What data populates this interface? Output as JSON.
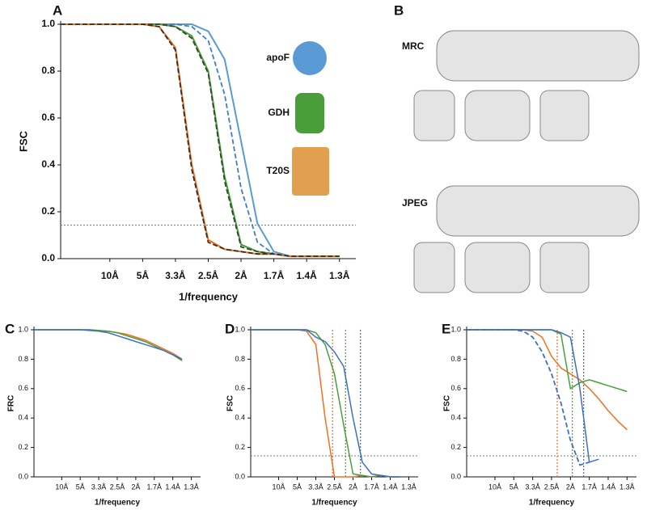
{
  "chart_data": [
    {
      "type": "line",
      "label": "A",
      "x_label": "1/frequency",
      "y_label": "FSC",
      "x": [
        -0.05,
        0,
        0.05,
        0.1,
        0.15,
        0.2,
        0.25,
        0.3,
        0.35,
        0.4,
        0.45,
        0.5,
        0.55,
        0.6,
        0.65,
        0.7,
        0.75,
        0.8
      ],
      "xlim": [
        -0.05,
        0.85
      ],
      "ylim": [
        0,
        1
      ],
      "xticks": [
        {
          "value": 0.1,
          "label": "10Å"
        },
        {
          "value": 0.2,
          "label": "5Å"
        },
        {
          "value": 0.3,
          "label": "3.3Å"
        },
        {
          "value": 0.4,
          "label": "2.5Å"
        },
        {
          "value": 0.5,
          "label": "2Å"
        },
        {
          "value": 0.6,
          "label": "1.7Å"
        },
        {
          "value": 0.7,
          "label": "1.4Å"
        },
        {
          "value": 0.8,
          "label": "1.3Å"
        }
      ],
      "yticks": [
        {
          "value": 0,
          "label": "0.0"
        },
        0.2,
        0.4,
        0.6,
        0.8,
        {
          "value": 1,
          "label": "1.0"
        }
      ],
      "threshold": 0.143,
      "series": [
        {
          "name": "apoF",
          "color": "#5b9bd5",
          "dash_color": "#3f7fc4",
          "values": [
            1,
            1,
            1,
            1,
            1,
            1,
            1,
            1,
            1,
            0.97,
            0.85,
            0.5,
            0.15,
            0.03,
            0.01,
            0.01,
            0.01,
            0.01
          ],
          "dash_values": [
            1,
            1,
            1,
            1,
            1,
            1,
            1,
            1,
            0.99,
            0.93,
            0.7,
            0.3,
            0.07,
            0.02,
            0.01,
            0.01,
            0.01,
            0.01
          ]
        },
        {
          "name": "GDH",
          "color": "#4a9e3a",
          "dash_color": "#2f4a2a",
          "values": [
            1,
            1,
            1,
            1,
            1,
            1,
            1,
            0.99,
            0.95,
            0.8,
            0.35,
            0.06,
            0.03,
            0.02,
            0.01,
            0.01,
            0.01,
            0.01
          ],
          "dash_values": [
            1,
            1,
            1,
            1,
            1,
            1,
            1,
            0.99,
            0.94,
            0.79,
            0.33,
            0.05,
            0.03,
            0.02,
            0.01,
            0.01,
            0.01,
            0.01
          ]
        },
        {
          "name": "T20S",
          "color": "#f07020",
          "dash_color": "#3a2a20",
          "values": [
            1,
            1,
            1,
            1,
            1,
            1,
            0.99,
            0.9,
            0.4,
            0.08,
            0.04,
            0.03,
            0.02,
            0.02,
            0.01,
            0.01,
            0.01,
            0.01
          ],
          "dash_values": [
            1,
            1,
            1,
            1,
            1,
            1,
            0.99,
            0.89,
            0.38,
            0.07,
            0.04,
            0.03,
            0.02,
            0.02,
            0.01,
            0.01,
            0.01,
            0.01
          ]
        }
      ]
    },
    {
      "type": "line",
      "label": "C",
      "x_label": "1/frequency",
      "y_label": "FRC",
      "x": [
        -0.05,
        0,
        0.05,
        0.1,
        0.15,
        0.2,
        0.25,
        0.3,
        0.35,
        0.4,
        0.45,
        0.5,
        0.55,
        0.6,
        0.65,
        0.7,
        0.75,
        0.8
      ],
      "xlim": [
        -0.05,
        0.85
      ],
      "ylim": [
        0,
        1
      ],
      "xticks": [
        {
          "value": 0.1,
          "label": "10Å"
        },
        {
          "value": 0.2,
          "label": "5Å"
        },
        {
          "value": 0.3,
          "label": "3.3Å"
        },
        {
          "value": 0.4,
          "label": "2.5Å"
        },
        {
          "value": 0.5,
          "label": "2Å"
        },
        {
          "value": 0.6,
          "label": "1.7Å"
        },
        {
          "value": 0.7,
          "label": "1.4Å"
        },
        {
          "value": 0.8,
          "label": "1.3Å"
        }
      ],
      "yticks": [
        {
          "value": 0,
          "label": "0.0"
        },
        0.2,
        0.4,
        0.6,
        0.8,
        {
          "value": 1,
          "label": "1.0"
        }
      ],
      "series": [
        {
          "color": "#f07020",
          "values": [
            1,
            1,
            1,
            1,
            1,
            1,
            1,
            0.995,
            0.99,
            0.98,
            0.97,
            0.95,
            0.93,
            0.9,
            0.87,
            0.84,
            0.8,
            null
          ]
        },
        {
          "color": "#4a9e3a",
          "values": [
            1,
            1,
            1,
            1,
            1,
            1,
            1,
            0.995,
            0.99,
            0.98,
            0.96,
            0.94,
            0.92,
            0.89,
            0.86,
            0.83,
            0.79,
            null
          ]
        },
        {
          "color": "#3f6fc4",
          "values": [
            1,
            1,
            1,
            1,
            1,
            1,
            0.995,
            0.99,
            0.98,
            0.96,
            0.94,
            0.92,
            0.9,
            0.88,
            0.86,
            0.83,
            0.8,
            null
          ]
        }
      ]
    },
    {
      "type": "line",
      "label": "D",
      "x_label": "1/frequency",
      "y_label": "FSC",
      "x": [
        -0.05,
        0,
        0.05,
        0.1,
        0.15,
        0.2,
        0.25,
        0.3,
        0.35,
        0.4,
        0.45,
        0.5,
        0.55,
        0.6,
        0.65,
        0.7,
        0.75,
        0.8
      ],
      "xlim": [
        -0.05,
        0.85
      ],
      "ylim": [
        0,
        1
      ],
      "xticks": [
        {
          "value": 0.1,
          "label": "10Å"
        },
        {
          "value": 0.2,
          "label": "5Å"
        },
        {
          "value": 0.3,
          "label": "3.3Å"
        },
        {
          "value": 0.4,
          "label": "2.5Å"
        },
        {
          "value": 0.5,
          "label": "2Å"
        },
        {
          "value": 0.6,
          "label": "1.7Å"
        },
        {
          "value": 0.7,
          "label": "1.4Å"
        },
        {
          "value": 0.8,
          "label": "1.3Å"
        }
      ],
      "yticks": [
        {
          "value": 0,
          "label": "0.0"
        },
        0.2,
        0.4,
        0.6,
        0.8,
        {
          "value": 1,
          "label": "1.0"
        }
      ],
      "threshold": 0.143,
      "vlines": [
        {
          "value": 0.39,
          "color": "#f07020"
        },
        {
          "value": 0.46,
          "color": "#4a9e3a"
        },
        {
          "value": 0.54,
          "color": "#3f6fc4"
        }
      ],
      "series": [
        {
          "color": "#f07020",
          "values": [
            1,
            1,
            1,
            1,
            1,
            1,
            0.99,
            0.9,
            0.4,
            0,
            0,
            0,
            0.01,
            0,
            0.01,
            0,
            0,
            null
          ]
        },
        {
          "color": "#4a9e3a",
          "values": [
            1,
            1,
            1,
            1,
            1,
            1,
            1,
            0.98,
            0.9,
            0.7,
            0.35,
            0.02,
            0.01,
            0,
            0.01,
            0,
            0,
            null
          ]
        },
        {
          "color": "#3f6fc4",
          "values": [
            1,
            1,
            1,
            1,
            1,
            1,
            1,
            0.95,
            0.92,
            0.85,
            0.75,
            0.4,
            0.1,
            0.02,
            0.01,
            0,
            0,
            null
          ]
        }
      ]
    },
    {
      "type": "line",
      "label": "E",
      "x_label": "1/frequency",
      "y_label": "FSC",
      "x": [
        -0.05,
        0,
        0.05,
        0.1,
        0.15,
        0.2,
        0.25,
        0.3,
        0.35,
        0.4,
        0.45,
        0.5,
        0.55,
        0.6,
        0.65,
        0.7,
        0.75,
        0.8
      ],
      "xlim": [
        -0.05,
        0.85
      ],
      "ylim": [
        0,
        1
      ],
      "xticks": [
        {
          "value": 0.1,
          "label": "10Å"
        },
        {
          "value": 0.2,
          "label": "5Å"
        },
        {
          "value": 0.3,
          "label": "3.3Å"
        },
        {
          "value": 0.4,
          "label": "2.5Å"
        },
        {
          "value": 0.5,
          "label": "2Å"
        },
        {
          "value": 0.6,
          "label": "1.7Å"
        },
        {
          "value": 0.7,
          "label": "1.4Å"
        },
        {
          "value": 0.8,
          "label": "1.3Å"
        }
      ],
      "yticks": [
        {
          "value": 0,
          "label": "0.0"
        },
        0.2,
        0.4,
        0.6,
        0.8,
        {
          "value": 1,
          "label": "1.0"
        }
      ],
      "threshold": 0.143,
      "vlines": [
        {
          "value": 0.43,
          "color": "#f07020"
        },
        {
          "value": 0.51,
          "color": "#4a9e3a"
        },
        {
          "value": 0.57,
          "color": "#3f6fc4"
        }
      ],
      "series": [
        {
          "color": "#f07020",
          "values": [
            1,
            1,
            1,
            1,
            1,
            1,
            1,
            0.99,
            0.95,
            0.82,
            0.74,
            0.7,
            0.66,
            0.6,
            0.53,
            0.45,
            0.38,
            0.32
          ]
        },
        {
          "color": "#4a9e3a",
          "values": [
            1,
            1,
            1,
            1,
            1,
            1,
            1,
            1,
            1,
            1,
            0.97,
            0.6,
            0.64,
            0.66,
            0.64,
            0.62,
            0.6,
            0.58
          ]
        },
        {
          "color": "#3f6fc4",
          "dash_color": "#3f6fc4",
          "values": [
            1,
            1,
            1,
            1,
            1,
            1,
            1,
            1,
            1,
            1,
            0.98,
            0.95,
            0.6,
            0.1,
            0.12,
            null,
            null,
            null
          ],
          "dash_values": [
            1,
            1,
            1,
            1,
            1,
            1,
            0.99,
            0.95,
            0.85,
            0.7,
            0.5,
            0.25,
            0.08,
            0.1,
            null,
            null,
            null,
            null
          ]
        }
      ]
    }
  ],
  "panel_b": {
    "label": "B",
    "rows": [
      "MRC",
      "JPEG"
    ]
  }
}
